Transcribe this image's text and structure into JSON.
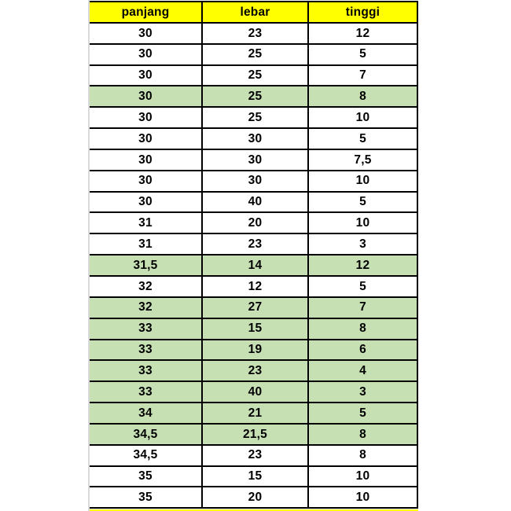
{
  "chart_data": {
    "type": "table",
    "title": "",
    "columns": [
      "panjang",
      "lebar",
      "tinggi"
    ],
    "rows": [
      [
        "30",
        "23",
        "12"
      ],
      [
        "30",
        "25",
        "5"
      ],
      [
        "30",
        "25",
        "7"
      ],
      [
        "30",
        "25",
        "8"
      ],
      [
        "30",
        "25",
        "10"
      ],
      [
        "30",
        "30",
        "5"
      ],
      [
        "30",
        "30",
        "7,5"
      ],
      [
        "30",
        "30",
        "10"
      ],
      [
        "30",
        "40",
        "5"
      ],
      [
        "31",
        "20",
        "10"
      ],
      [
        "31",
        "23",
        "3"
      ],
      [
        "31,5",
        "14",
        "12"
      ],
      [
        "32",
        "12",
        "5"
      ],
      [
        "32",
        "27",
        "7"
      ],
      [
        "33",
        "15",
        "8"
      ],
      [
        "33",
        "19",
        "6"
      ],
      [
        "33",
        "23",
        "4"
      ],
      [
        "33",
        "40",
        "3"
      ],
      [
        "34",
        "21",
        "5"
      ],
      [
        "34,5",
        "21,5",
        "8"
      ],
      [
        "34,5",
        "23",
        "8"
      ],
      [
        "35",
        "15",
        "10"
      ],
      [
        "35",
        "20",
        "10"
      ]
    ],
    "highlighted_rows": [
      3,
      11,
      13,
      14,
      15,
      16,
      17,
      18,
      19
    ],
    "header_bg": "#ffff00",
    "highlight_bg": "#c6e0b4",
    "row_bg": "#ffffff",
    "border_color": "#000000",
    "gridline_color": "#d9d9d9",
    "next_header_visible": true
  }
}
